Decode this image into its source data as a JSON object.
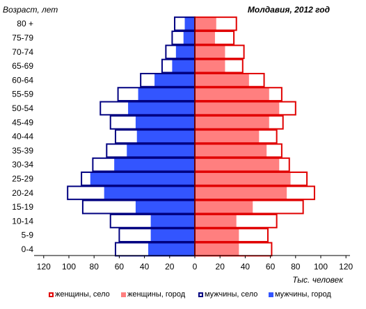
{
  "chart_data": {
    "type": "bar",
    "orientation": "horizontal",
    "layout": "population-pyramid",
    "title": "Молдавия, 2012 год",
    "ylabel": "Возраст,  лет",
    "xlabel": "Тыс. человек",
    "xlim": [
      -120,
      120
    ],
    "x_ticks": [
      "120",
      "100",
      "80",
      "60",
      "40",
      "20",
      "0",
      "20",
      "40",
      "60",
      "80",
      "100",
      "120"
    ],
    "grid": false,
    "legend_position": "bottom",
    "categories": [
      "80 +",
      "75-79",
      "70-74",
      "65-69",
      "60-64",
      "55-59",
      "50-54",
      "45-49",
      "40-44",
      "35-39",
      "30-34",
      "25-29",
      "20-24",
      "15-19",
      "10-14",
      "5-9",
      "0-4"
    ],
    "series": [
      {
        "name": "мужчины, город",
        "side": "left",
        "color": "#3355ff",
        "style": "filled",
        "values": [
          8,
          9,
          15,
          18,
          32,
          45,
          53,
          47,
          46,
          54,
          64,
          83,
          72,
          47,
          35,
          35,
          37
        ]
      },
      {
        "name": "мужчины, село",
        "side": "left",
        "color": "#000080",
        "style": "outline",
        "values": [
          16,
          18,
          23,
          26,
          43,
          61,
          75,
          67,
          63,
          70,
          81,
          90,
          101,
          89,
          67,
          60,
          63
        ]
      },
      {
        "name": "женщины, город",
        "side": "right",
        "color": "#ff7f7f",
        "style": "filled",
        "values": [
          17,
          16,
          24,
          24,
          43,
          59,
          67,
          59,
          51,
          57,
          67,
          76,
          73,
          46,
          33,
          35,
          35
        ]
      },
      {
        "name": "женщины, село",
        "side": "right",
        "color": "#e00000",
        "style": "outline",
        "values": [
          33,
          31,
          39,
          38,
          55,
          69,
          80,
          70,
          65,
          69,
          75,
          89,
          95,
          86,
          65,
          58,
          61
        ]
      }
    ]
  },
  "legend": [
    {
      "label": "женщины, село",
      "color": "#e00000",
      "style": "outline"
    },
    {
      "label": "женщины, город",
      "color": "#ff7f7f",
      "style": "filled"
    },
    {
      "label": "мужчины, село",
      "color": "#000080",
      "style": "outline"
    },
    {
      "label": "мужчины, город",
      "color": "#3355ff",
      "style": "filled"
    }
  ]
}
